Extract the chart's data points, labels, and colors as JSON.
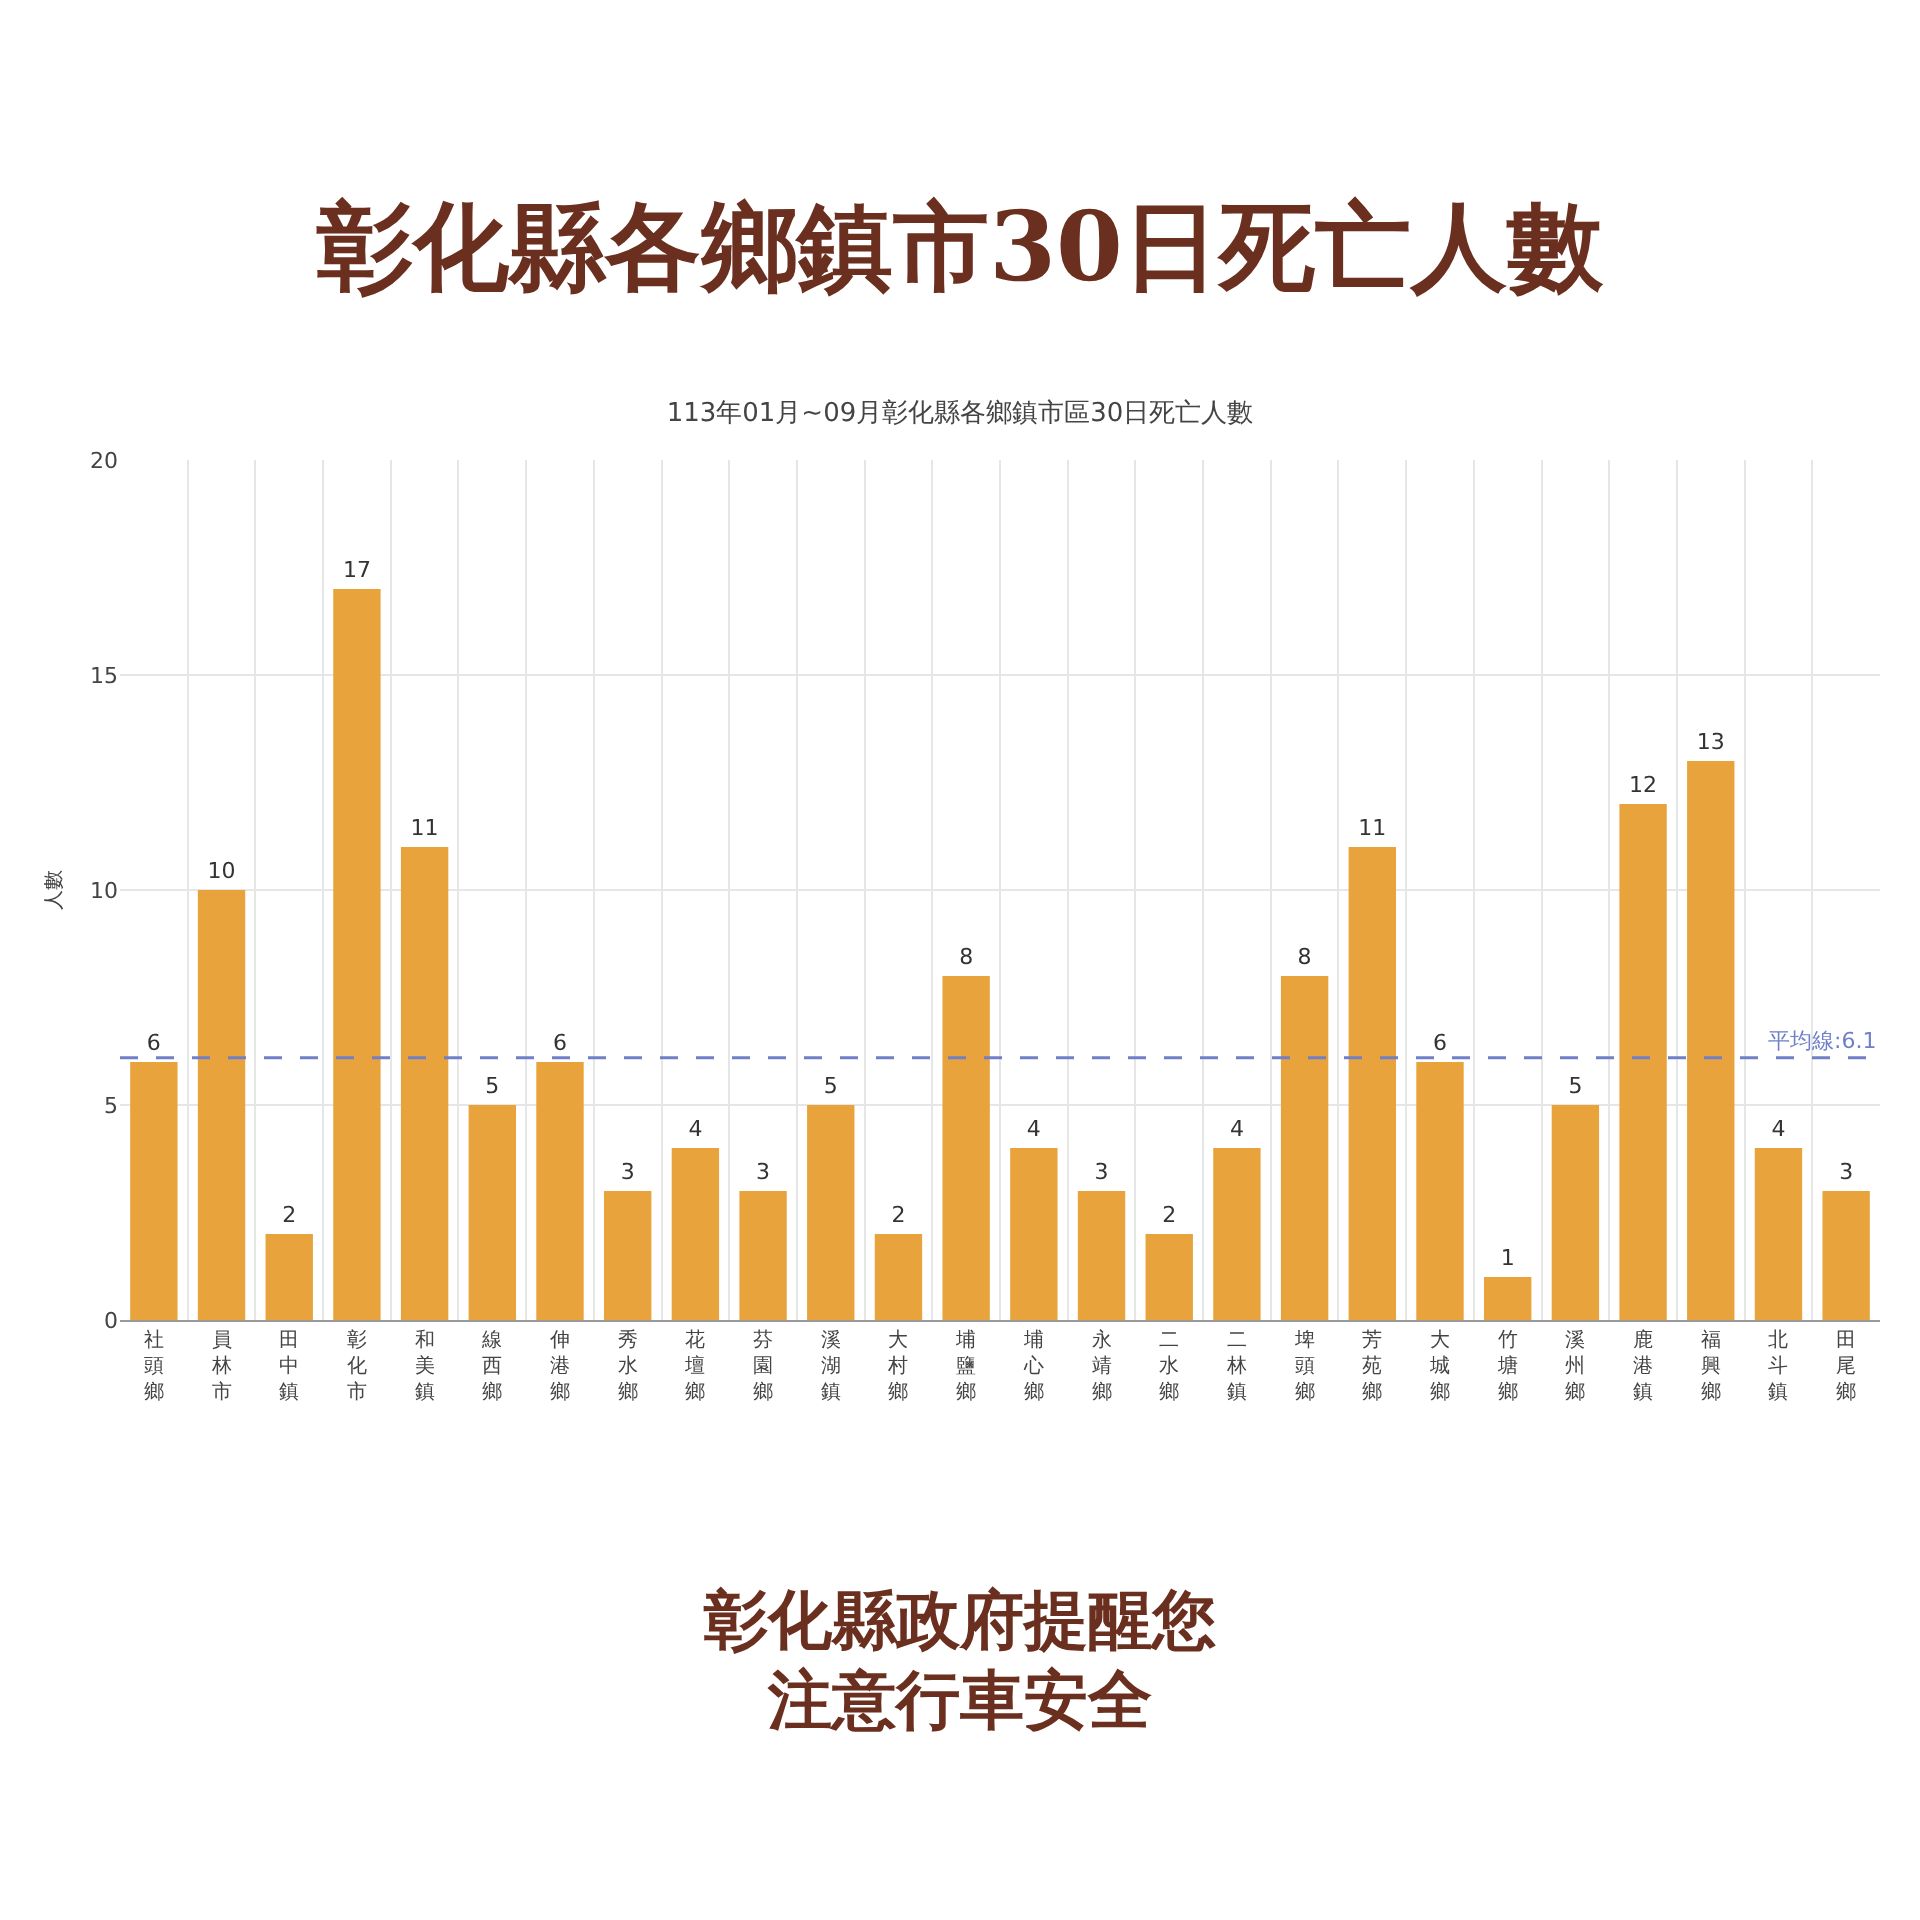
{
  "chart_data": {
    "type": "bar",
    "title": "彰化縣各鄉鎮市30日死亡人數",
    "subtitle": "113年01月~09月彰化縣各鄉鎮市區30日死亡人數",
    "ylabel": "人數",
    "categories": [
      "社頭鄉",
      "員林市",
      "田中鎮",
      "彰化市",
      "和美鎮",
      "線西鄉",
      "伸港鄉",
      "秀水鄉",
      "花壇鄉",
      "芬園鄉",
      "溪湖鎮",
      "大村鄉",
      "埔鹽鄉",
      "埔心鄉",
      "永靖鄉",
      "二水鄉",
      "二林鎮",
      "埤頭鄉",
      "芳苑鄉",
      "大城鄉",
      "竹塘鄉",
      "溪州鄉",
      "鹿港鎮",
      "福興鄉",
      "北斗鎮",
      "田尾鄉"
    ],
    "values": [
      6,
      10,
      2,
      17,
      11,
      5,
      6,
      3,
      4,
      3,
      5,
      2,
      8,
      4,
      3,
      2,
      4,
      8,
      11,
      6,
      1,
      5,
      12,
      13,
      4,
      3
    ],
    "color": "#e8a33d",
    "ylim": [
      0,
      20
    ],
    "yticks": [
      0,
      5,
      10,
      15,
      20
    ],
    "grid": true,
    "data_labels": true,
    "ref_lines": [
      {
        "axis": "y",
        "value": 6.1,
        "label": "平均線:6.1",
        "color": "#7080c8",
        "line_style": "dashed"
      }
    ],
    "annotations": [
      "彰化縣政府提醒您",
      "注意行車安全"
    ]
  }
}
